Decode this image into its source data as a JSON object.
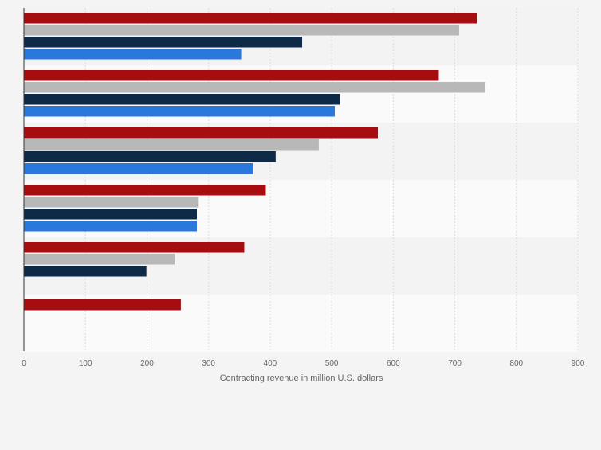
{
  "chart_data": {
    "type": "bar",
    "orientation": "horizontal",
    "categories": [
      "",
      "",
      "",
      "",
      "",
      ""
    ],
    "series": [
      {
        "color": "#a50d10",
        "values": [
          736,
          674,
          575,
          393,
          358,
          255
        ]
      },
      {
        "color": "#b8b8b8",
        "values": [
          707,
          749,
          479,
          284,
          245,
          null
        ]
      },
      {
        "color": "#0e2a47",
        "values": [
          452,
          513,
          409,
          281,
          199,
          null
        ]
      },
      {
        "color": "#2a78dc",
        "values": [
          353,
          505,
          372,
          281,
          null,
          null
        ]
      }
    ],
    "xlabel": "Contracting revenue in million U.S. dollars",
    "xlim": [
      0,
      900
    ],
    "xticks": [
      0,
      100,
      200,
      300,
      400,
      500,
      600,
      700,
      800,
      900
    ],
    "xtick_labels": [
      "0",
      "100",
      "200",
      "300",
      "400",
      "500",
      "600",
      "700",
      "800",
      "900"
    ],
    "grid": true,
    "legend": "none",
    "band_colors": [
      "#f3f3f3",
      "#fafafa"
    ]
  }
}
